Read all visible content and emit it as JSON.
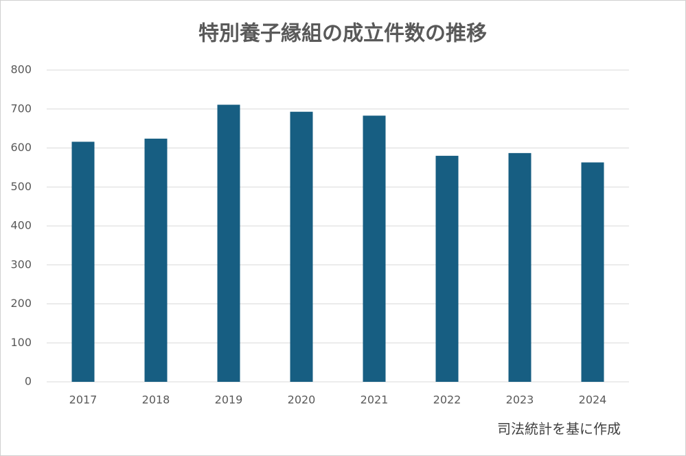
{
  "chart_data": {
    "type": "bar",
    "title": "特別養子縁組の成立件数の推移",
    "categories": [
      "2017",
      "2018",
      "2019",
      "2020",
      "2021",
      "2022",
      "2023",
      "2024"
    ],
    "values": [
      616,
      624,
      711,
      693,
      683,
      580,
      587,
      563
    ],
    "color": "#175e82",
    "ylim": [
      0,
      800
    ],
    "yticks": [
      0,
      100,
      200,
      300,
      400,
      500,
      600,
      700,
      800
    ],
    "grid": true,
    "annotation": "司法統計を基に作成"
  }
}
